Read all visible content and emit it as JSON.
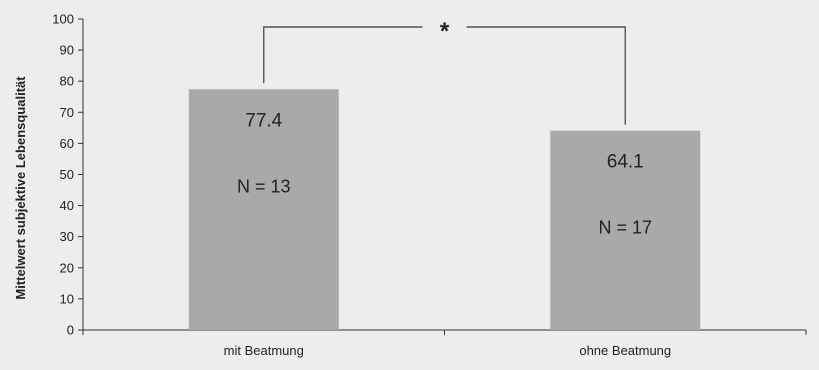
{
  "chart_data": {
    "type": "bar",
    "title": "",
    "xlabel": "",
    "ylabel": "Mittelwert subjektive Lebensqualität",
    "ylim": [
      0,
      100
    ],
    "yticks": [
      0,
      10,
      20,
      30,
      40,
      50,
      60,
      70,
      80,
      90,
      100
    ],
    "categories": [
      "mit Beatmung",
      "ohne Beatmung"
    ],
    "values": [
      77.4,
      64.1
    ],
    "value_labels": [
      "77.4",
      "64.1"
    ],
    "n_labels": [
      "N = 13",
      "N = 17"
    ],
    "significance_marker": "*",
    "grid": false,
    "colors": {
      "bar": "#a9a9a9",
      "background": "#ededed",
      "axis": "#333333"
    }
  }
}
